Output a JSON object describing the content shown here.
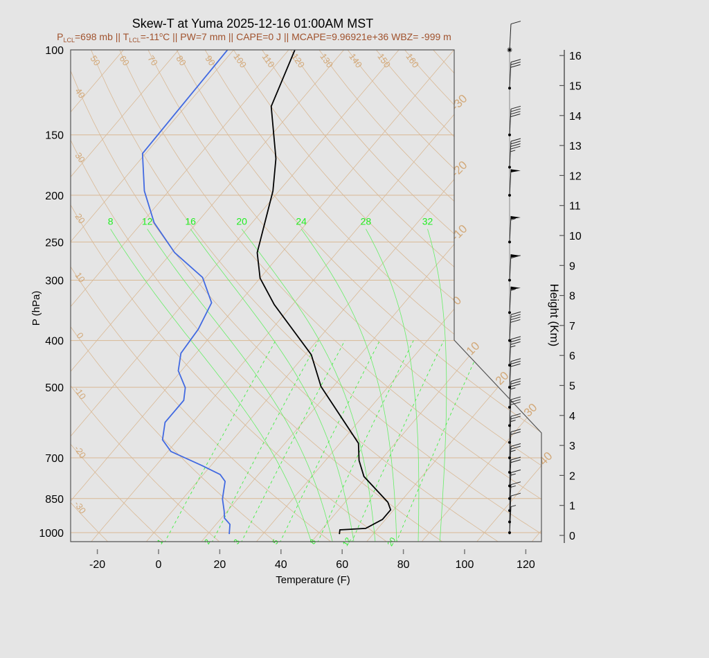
{
  "chart_data": {
    "type": "line",
    "title": "Skew-T at Yuma 2025-12-16 01:00AM MST",
    "subtitle_parts": [
      "P",
      "LCL",
      "=698 mb || T",
      "LCL",
      "=-11",
      "o",
      "C || PW=7 mm || CAPE=0 J || MCAPE=9.96921e+36 WBZ= -999 m"
    ],
    "xlabel": "Temperature (F)",
    "ylabel": "P (hPa)",
    "y2label": "Height (Km)",
    "y_scale": "log",
    "ylim": [
      1050,
      100
    ],
    "xlim": [
      -30,
      125
    ],
    "x_ticks": [
      "-20",
      "0",
      "20",
      "40",
      "60",
      "80",
      "100",
      "120"
    ],
    "y_ticks": [
      "100",
      "150",
      "200",
      "250",
      "300",
      "400",
      "500",
      "700",
      "850",
      "1000"
    ],
    "height_ticks": [
      "0",
      "1",
      "2",
      "3",
      "4",
      "5",
      "6",
      "7",
      "8",
      "9",
      "10",
      "11",
      "12",
      "13",
      "14",
      "15",
      "16"
    ],
    "colors": {
      "temperature": "#000000",
      "dewpoint": "#4169e1",
      "background_lines": "#d8b48a",
      "moist_lines": "#33ff33",
      "subtitle": "#a0522d"
    },
    "series": [
      {
        "name": "temperature",
        "points": [
          [
            100,
            -92
          ],
          [
            131,
            -84
          ],
          [
            168,
            -68
          ],
          [
            196,
            -60
          ],
          [
            263,
            -48
          ],
          [
            297,
            -40
          ],
          [
            337,
            -28
          ],
          [
            428,
            -2
          ],
          [
            498,
            10
          ],
          [
            653,
            38
          ],
          [
            709,
            43
          ],
          [
            765,
            49
          ],
          [
            865,
            64
          ],
          [
            897,
            67
          ],
          [
            939,
            67
          ],
          [
            980,
            64
          ],
          [
            987,
            56
          ],
          [
            1007,
            57
          ]
        ]
      },
      {
        "name": "dewpoint",
        "points": [
          [
            100,
            -114
          ],
          [
            164,
            -113
          ],
          [
            196,
            -102
          ],
          [
            228,
            -90
          ],
          [
            263,
            -75
          ],
          [
            296,
            -59
          ],
          [
            334,
            -49
          ],
          [
            379,
            -46
          ],
          [
            425,
            -45
          ],
          [
            462,
            -41
          ],
          [
            501,
            -34
          ],
          [
            532,
            -31
          ],
          [
            591,
            -31
          ],
          [
            642,
            -27
          ],
          [
            679,
            -21
          ],
          [
            726,
            -7
          ],
          [
            758,
            1.5
          ],
          [
            783,
            5
          ],
          [
            851,
            9
          ],
          [
            903,
            13
          ],
          [
            933,
            15
          ],
          [
            961,
            18.5
          ],
          [
            1007,
            21
          ]
        ]
      }
    ],
    "dry_adiabat_labels_top": [
      "50",
      "60",
      "70",
      "80",
      "90",
      "100",
      "110",
      "120",
      "130",
      "140",
      "150",
      "160"
    ],
    "dry_adiabat_labels_left": [
      "40",
      "30",
      "20",
      "10",
      "0",
      "-10",
      "-20",
      "-30"
    ],
    "isotherm_labels": [
      "-30",
      "-20",
      "-10",
      "0",
      "10",
      "20",
      "30",
      "40"
    ],
    "moist_adiabat_labels": [
      "8",
      "12",
      "16",
      "20",
      "24",
      "28",
      "32"
    ],
    "mixing_ratio_labels": [
      "1",
      "2",
      "3",
      "5",
      "8",
      "12",
      "20"
    ],
    "wind_barbs_kt": [
      [
        1000,
        5
      ],
      [
        950,
        10
      ],
      [
        900,
        15
      ],
      [
        850,
        15
      ],
      [
        800,
        20
      ],
      [
        750,
        25
      ],
      [
        700,
        20
      ],
      [
        650,
        25
      ],
      [
        600,
        30
      ],
      [
        550,
        35
      ],
      [
        500,
        30
      ],
      [
        450,
        35
      ],
      [
        400,
        40
      ],
      [
        350,
        55
      ],
      [
        300,
        60
      ],
      [
        250,
        55
      ],
      [
        200,
        50
      ],
      [
        175,
        45
      ],
      [
        150,
        40
      ],
      [
        120,
        30
      ],
      [
        100,
        10
      ]
    ]
  }
}
